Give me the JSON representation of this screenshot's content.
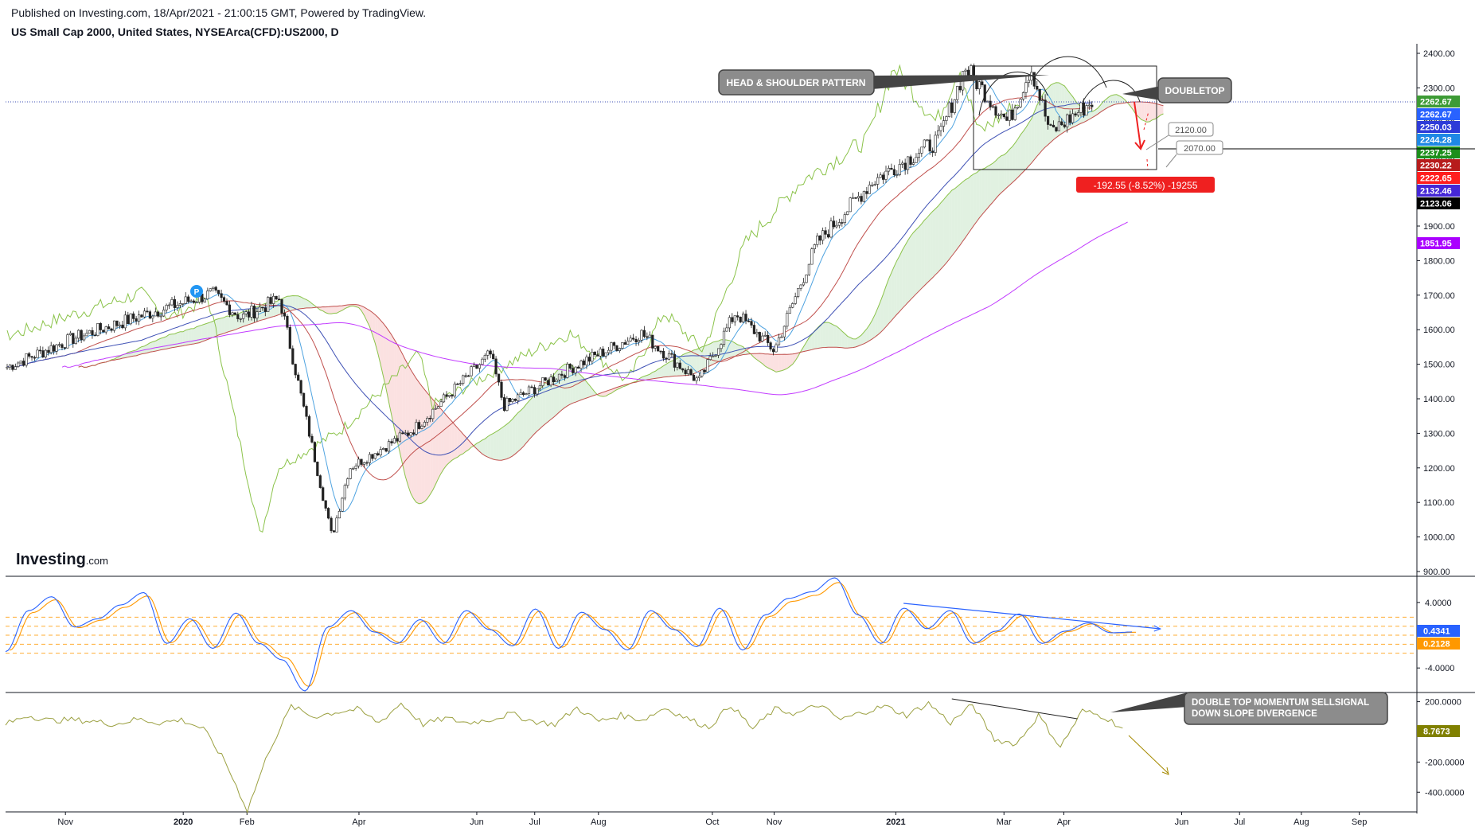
{
  "header": {
    "published": "Published on Investing.com, 18/Apr/2021 - 21:00:15 GMT, Powered by TradingView.",
    "symbol": "US Small Cap 2000, United States, NYSEArca(CFD):US2000, D"
  },
  "logo": {
    "brand": "Investing",
    "suffix": ".com"
  },
  "annotations": {
    "hs_pattern": "HEAD & SHOULDER PATTERN",
    "doubletop": "DOUBLETOP",
    "target1": "2120.00",
    "target2": "2070.00",
    "measure": "-192.55 (-8.52%) -19255",
    "momentum": [
      "DOUBLE TOP MOMENTUM SELLSIGNAL",
      "DOWN SLOPE DIVERGENCE"
    ],
    "pivot_marker": "P"
  },
  "colors": {
    "up": "#26a69a",
    "down": "#ef5350",
    "ichimoku_green": "#8bc34a",
    "cloud_red": "#c0504d",
    "ma_blue": "#3f51b5",
    "ma_purple": "#c23bff",
    "tenkan": "#4fa3e0",
    "macd_blue": "#2962ff",
    "macd_orange": "#ff9800",
    "osc": "#9ba040",
    "measure_red": "#ef2020"
  },
  "chart_data": [
    {
      "type": "candlestick",
      "title": "US Small Cap 2000, United States, NYSEArca(CFD):US2000, D",
      "ylim": [
        870,
        2420
      ],
      "yticks": [
        900,
        1000,
        1100,
        1200,
        1300,
        1400,
        1500,
        1600,
        1700,
        1800,
        1900,
        2000,
        2100,
        2200,
        2300,
        2400
      ],
      "xticks": [
        "Nov",
        "2020",
        "Feb",
        "Apr",
        "Jun",
        "Jul",
        "Aug",
        "Oct",
        "Nov",
        "2021",
        "Mar",
        "Apr",
        "Jun",
        "Jul",
        "Aug",
        "Sep"
      ],
      "price_path_approx": [
        [
          "2019-10-01",
          1490
        ],
        [
          "2019-11-05",
          1575
        ],
        [
          "2019-12-10",
          1640
        ],
        [
          "2020-01-16",
          1705
        ],
        [
          "2020-01-31",
          1635
        ],
        [
          "2020-02-20",
          1690
        ],
        [
          "2020-03-18",
          1000
        ],
        [
          "2020-03-27",
          1200
        ],
        [
          "2020-04-29",
          1310
        ],
        [
          "2020-06-08",
          1530
        ],
        [
          "2020-06-15",
          1380
        ],
        [
          "2020-07-20",
          1490
        ],
        [
          "2020-08-25",
          1590
        ],
        [
          "2020-09-24",
          1450
        ],
        [
          "2020-10-13",
          1650
        ],
        [
          "2020-11-02",
          1540
        ],
        [
          "2020-11-24",
          1850
        ],
        [
          "2020-12-23",
          2030
        ],
        [
          "2021-01-26",
          2150
        ],
        [
          "2021-02-09",
          2360
        ],
        [
          "2021-03-03",
          2200
        ],
        [
          "2021-03-15",
          2360
        ],
        [
          "2021-03-25",
          2170
        ],
        [
          "2021-04-16",
          2262.67
        ]
      ],
      "price_labels": [
        {
          "value": "2262.67",
          "color": "#3d9b35"
        },
        {
          "value": "2262.67",
          "color": "#2962ff"
        },
        {
          "value": "2250.03",
          "color": "#2e3bd8"
        },
        {
          "value": "2244.28",
          "color": "#1e88e5"
        },
        {
          "value": "2237.25",
          "color": "#1b8f1b"
        },
        {
          "value": "2230.22",
          "color": "#b71c1c"
        },
        {
          "value": "2222.65",
          "color": "#ff1e1e"
        },
        {
          "value": "2132.46",
          "color": "#4527d6"
        },
        {
          "value": "2123.06",
          "color": "#000000"
        },
        {
          "value": "1851.95",
          "color": "#aa00ff"
        }
      ],
      "horizontal_line": 2080,
      "pattern_box": {
        "from": "2021-01-22",
        "to": "2021-04-30",
        "top": 2365,
        "bottom": 2120
      }
    },
    {
      "type": "line",
      "name": "oscillator (MACD-style)",
      "yticks": [
        "4.0000",
        "-4.0000"
      ],
      "series_labels": [
        {
          "value": "0.4341",
          "color": "#2962ff"
        },
        {
          "value": "0.2128",
          "color": "#ff9800"
        }
      ],
      "ylim": [
        -6.8,
        7.0
      ],
      "values_approx": [
        -2,
        3,
        4.7,
        1,
        2,
        3.7,
        5.2,
        -1,
        2,
        -1.6,
        2.7,
        -1,
        -3,
        -6.8,
        1,
        3,
        0.4,
        -1,
        1.9,
        -1,
        3,
        0.7,
        -1.3,
        3.2,
        -1.6,
        2.8,
        0.7,
        -1.8,
        3,
        0.7,
        -1.4,
        3.3,
        -1.8,
        2.5,
        4.5,
        5.3,
        7,
        2.5,
        -1,
        3.3,
        0.8,
        3,
        -1,
        0.5,
        2.6,
        -1,
        0.5,
        1.5,
        0.3,
        0.4
      ],
      "divergence_line": {
        "from": "2021-01-08",
        "to": "2021-05-21"
      }
    },
    {
      "type": "line",
      "name": "momentum",
      "yticks": [
        "200.0000",
        "-200.0000",
        "-400.0000"
      ],
      "series_labels": [
        {
          "value": "8.7673",
          "color": "#808000"
        }
      ],
      "ylim": [
        -520,
        240
      ],
      "values_approx": [
        50,
        110,
        75,
        80,
        70,
        50,
        85,
        60,
        80,
        20,
        -200,
        -520,
        -120,
        170,
        100,
        130,
        150,
        60,
        190,
        50,
        90,
        60,
        80,
        120,
        70,
        50,
        160,
        70,
        110,
        80,
        160,
        90,
        30,
        180,
        20,
        150,
        120,
        180,
        80,
        130,
        170,
        110,
        190,
        60,
        180,
        -50,
        -80,
        110,
        -100,
        140,
        100,
        8.77
      ],
      "divergence_line": {
        "from": "2021-02-02",
        "to": "2021-04-08"
      }
    }
  ]
}
